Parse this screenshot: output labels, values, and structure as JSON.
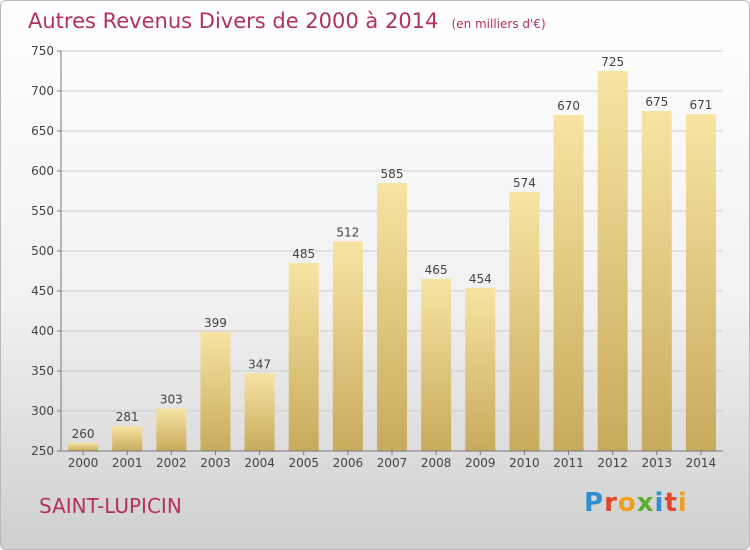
{
  "header": {
    "title": "Autres Revenus Divers de 2000 à 2014",
    "unit": "(en milliers d'€)"
  },
  "footer": {
    "commune": "SAINT-LUPICIN",
    "logo_text": "Proxiti"
  },
  "colors": {
    "title": "#b3305f",
    "bar_light": "#f6e2a0",
    "bar_dark": "#c9ab5e",
    "grid": "#cccccc"
  },
  "chart_data": {
    "type": "bar",
    "title": "Autres Revenus Divers de 2000 à 2014",
    "categories": [
      "2000",
      "2001",
      "2002",
      "2003",
      "2004",
      "2005",
      "2006",
      "2007",
      "2008",
      "2009",
      "2010",
      "2011",
      "2012",
      "2013",
      "2014"
    ],
    "values": [
      260,
      281,
      303,
      399,
      347,
      485,
      512,
      585,
      465,
      454,
      574,
      670,
      725,
      675,
      671
    ],
    "ylim": [
      250,
      750
    ],
    "yticks": [
      250,
      300,
      350,
      400,
      450,
      500,
      550,
      600,
      650,
      700,
      750
    ],
    "grid": true
  }
}
